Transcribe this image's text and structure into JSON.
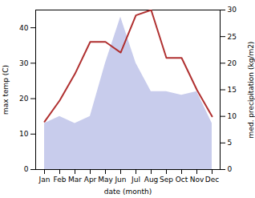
{
  "chart_data": {
    "type": "area",
    "categories": [
      "Jan",
      "Feb",
      "Mar",
      "Apr",
      "May",
      "Jun",
      "Jul",
      "Aug",
      "Sep",
      "Oct",
      "Nov",
      "Dec"
    ],
    "xlabel": "date (month)",
    "ylabel": "max temp (C)",
    "y2label": "med. precipitation (kg/m2)",
    "series": [
      {
        "type": "area",
        "color": "#c8ccec",
        "values": [
          13,
          15,
          13,
          15,
          30,
          43,
          30,
          22,
          22,
          21,
          22,
          13
        ]
      },
      {
        "type": "line",
        "color": "#b03030",
        "axis": "y2",
        "values": [
          9,
          13,
          18,
          24,
          24,
          22,
          29,
          30,
          21,
          21,
          15,
          10
        ]
      }
    ],
    "ylim": [
      0,
      45
    ],
    "yticks": [
      0,
      10,
      20,
      30,
      40
    ],
    "y2lim": [
      0,
      30
    ],
    "y2ticks": [
      0,
      5,
      10,
      15,
      20,
      25,
      30
    ],
    "grid": false
  }
}
